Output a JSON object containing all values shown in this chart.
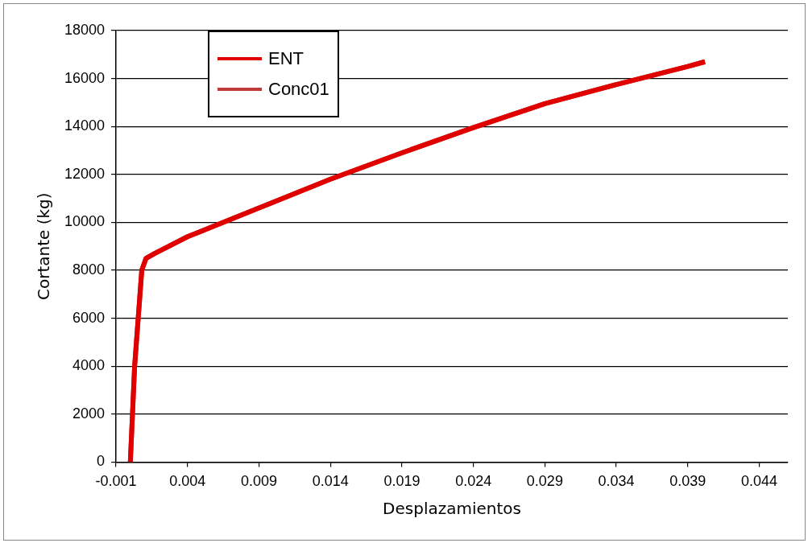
{
  "chart_data": {
    "type": "line",
    "xlabel": "Desplazamientos",
    "ylabel": "Cortante (kg)",
    "xlim": [
      -0.001,
      0.046
    ],
    "xticks": [
      -0.001,
      0.004,
      0.009,
      0.014,
      0.019,
      0.024,
      0.029,
      0.034,
      0.039,
      0.044
    ],
    "ylim": [
      0,
      18000
    ],
    "yticks": [
      0,
      2000,
      4000,
      6000,
      8000,
      10000,
      12000,
      14000,
      16000,
      18000
    ],
    "grid": "y",
    "legend": "top left",
    "marker": "none",
    "line_style": "solid",
    "series": [
      {
        "name": "ENT",
        "color": "#e00000",
        "x": [
          0,
          0.0003,
          0.0008,
          0.0011,
          0.0017,
          0.004,
          0.009,
          0.014,
          0.019,
          0.024,
          0.029,
          0.034,
          0.039,
          0.0402
        ],
        "values": [
          0,
          4000,
          8000,
          8500,
          8700,
          9400,
          10600,
          11800,
          12900,
          13950,
          14950,
          15750,
          16500,
          16700
        ]
      },
      {
        "name": "Conc01",
        "color": "#c03a3a",
        "x": [
          0,
          0.0003,
          0.0008,
          0.0011,
          0.0017,
          0.004,
          0.009,
          0.014,
          0.019,
          0.024,
          0.029,
          0.034,
          0.039,
          0.0402
        ],
        "values": [
          0,
          4000,
          8000,
          8500,
          8700,
          9400,
          10600,
          11800,
          12900,
          13950,
          14950,
          15750,
          16500,
          16700
        ]
      }
    ]
  }
}
